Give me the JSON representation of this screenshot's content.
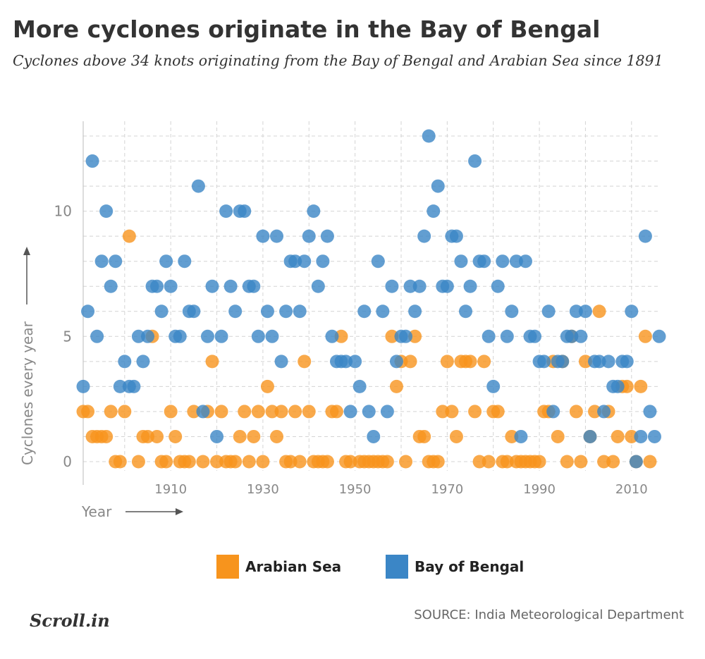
{
  "title": "More cyclones originate in the Bay of Bengal",
  "subtitle": "Cyclones above 34 knots originating from the Bay of Bengal and Arabian Sea since 1891",
  "source": "SOURCE: India Meteorological Department",
  "logo_text": "Scroll.in",
  "colors": {
    "arabian_sea": "#F7941D",
    "bay_of_bengal": "#3B86C6",
    "grid": "#d4d4d4",
    "axis_text": "#888888"
  },
  "chart_data": {
    "type": "scatter",
    "xlabel": "Year",
    "ylabel": "Cyclones every year",
    "xlim": [
      1891,
      2016
    ],
    "ylim": [
      0,
      13
    ],
    "x_ticks": [
      1910,
      1930,
      1950,
      1970,
      1990,
      2010
    ],
    "y_ticks": [
      0,
      5,
      10
    ],
    "grid": true,
    "legend_position": "bottom",
    "series": [
      {
        "name": "Arabian Sea",
        "color": "#F7941D",
        "points": [
          [
            1891,
            2
          ],
          [
            1892,
            2
          ],
          [
            1893,
            1
          ],
          [
            1894,
            1
          ],
          [
            1895,
            1
          ],
          [
            1896,
            1
          ],
          [
            1897,
            2
          ],
          [
            1898,
            0
          ],
          [
            1899,
            0
          ],
          [
            1900,
            2
          ],
          [
            1901,
            9
          ],
          [
            1903,
            0
          ],
          [
            1904,
            1
          ],
          [
            1905,
            1
          ],
          [
            1906,
            5
          ],
          [
            1907,
            1
          ],
          [
            1908,
            0
          ],
          [
            1909,
            0
          ],
          [
            1910,
            2
          ],
          [
            1911,
            1
          ],
          [
            1912,
            0
          ],
          [
            1913,
            0
          ],
          [
            1914,
            0
          ],
          [
            1915,
            2
          ],
          [
            1917,
            0
          ],
          [
            1918,
            2
          ],
          [
            1919,
            4
          ],
          [
            1920,
            0
          ],
          [
            1921,
            2
          ],
          [
            1922,
            0
          ],
          [
            1923,
            0
          ],
          [
            1924,
            0
          ],
          [
            1925,
            1
          ],
          [
            1926,
            2
          ],
          [
            1927,
            0
          ],
          [
            1928,
            1
          ],
          [
            1929,
            2
          ],
          [
            1930,
            0
          ],
          [
            1931,
            3
          ],
          [
            1932,
            2
          ],
          [
            1933,
            1
          ],
          [
            1934,
            2
          ],
          [
            1935,
            0
          ],
          [
            1936,
            0
          ],
          [
            1937,
            2
          ],
          [
            1938,
            0
          ],
          [
            1939,
            4
          ],
          [
            1940,
            2
          ],
          [
            1941,
            0
          ],
          [
            1942,
            0
          ],
          [
            1943,
            0
          ],
          [
            1944,
            0
          ],
          [
            1945,
            2
          ],
          [
            1946,
            2
          ],
          [
            1947,
            5
          ],
          [
            1948,
            0
          ],
          [
            1949,
            0
          ],
          [
            1951,
            0
          ],
          [
            1952,
            0
          ],
          [
            1953,
            0
          ],
          [
            1954,
            0
          ],
          [
            1955,
            0
          ],
          [
            1956,
            0
          ],
          [
            1957,
            0
          ],
          [
            1958,
            5
          ],
          [
            1959,
            3
          ],
          [
            1960,
            4
          ],
          [
            1961,
            0
          ],
          [
            1962,
            4
          ],
          [
            1963,
            5
          ],
          [
            1964,
            1
          ],
          [
            1965,
            1
          ],
          [
            1966,
            0
          ],
          [
            1967,
            0
          ],
          [
            1968,
            0
          ],
          [
            1969,
            2
          ],
          [
            1970,
            4
          ],
          [
            1971,
            2
          ],
          [
            1972,
            1
          ],
          [
            1973,
            4
          ],
          [
            1974,
            4
          ],
          [
            1975,
            4
          ],
          [
            1976,
            2
          ],
          [
            1977,
            0
          ],
          [
            1978,
            4
          ],
          [
            1979,
            0
          ],
          [
            1980,
            2
          ],
          [
            1981,
            2
          ],
          [
            1982,
            0
          ],
          [
            1983,
            0
          ],
          [
            1984,
            1
          ],
          [
            1985,
            0
          ],
          [
            1986,
            0
          ],
          [
            1987,
            0
          ],
          [
            1988,
            0
          ],
          [
            1989,
            0
          ],
          [
            1990,
            0
          ],
          [
            1991,
            2
          ],
          [
            1992,
            2
          ],
          [
            1993,
            4
          ],
          [
            1994,
            1
          ],
          [
            1995,
            4
          ],
          [
            1996,
            0
          ],
          [
            1997,
            5
          ],
          [
            1998,
            2
          ],
          [
            1999,
            0
          ],
          [
            2000,
            4
          ],
          [
            2001,
            1
          ],
          [
            2002,
            2
          ],
          [
            2003,
            6
          ],
          [
            2004,
            0
          ],
          [
            2005,
            2
          ],
          [
            2006,
            0
          ],
          [
            2007,
            1
          ],
          [
            2008,
            3
          ],
          [
            2009,
            3
          ],
          [
            2010,
            1
          ],
          [
            2011,
            0
          ],
          [
            2012,
            3
          ],
          [
            2013,
            5
          ],
          [
            2014,
            0
          ]
        ]
      },
      {
        "name": "Bay of Bengal",
        "color": "#3B86C6",
        "points": [
          [
            1891,
            3
          ],
          [
            1892,
            6
          ],
          [
            1893,
            12
          ],
          [
            1894,
            5
          ],
          [
            1895,
            8
          ],
          [
            1896,
            10
          ],
          [
            1897,
            7
          ],
          [
            1898,
            8
          ],
          [
            1899,
            3
          ],
          [
            1900,
            4
          ],
          [
            1901,
            3
          ],
          [
            1902,
            3
          ],
          [
            1903,
            5
          ],
          [
            1904,
            4
          ],
          [
            1905,
            5
          ],
          [
            1906,
            7
          ],
          [
            1907,
            7
          ],
          [
            1908,
            6
          ],
          [
            1909,
            8
          ],
          [
            1910,
            7
          ],
          [
            1911,
            5
          ],
          [
            1912,
            5
          ],
          [
            1913,
            8
          ],
          [
            1914,
            6
          ],
          [
            1915,
            6
          ],
          [
            1916,
            11
          ],
          [
            1917,
            2
          ],
          [
            1918,
            5
          ],
          [
            1919,
            7
          ],
          [
            1920,
            1
          ],
          [
            1921,
            5
          ],
          [
            1922,
            10
          ],
          [
            1923,
            7
          ],
          [
            1924,
            6
          ],
          [
            1925,
            10
          ],
          [
            1926,
            10
          ],
          [
            1927,
            7
          ],
          [
            1928,
            7
          ],
          [
            1929,
            5
          ],
          [
            1930,
            9
          ],
          [
            1931,
            6
          ],
          [
            1932,
            5
          ],
          [
            1933,
            9
          ],
          [
            1934,
            4
          ],
          [
            1935,
            6
          ],
          [
            1936,
            8
          ],
          [
            1937,
            8
          ],
          [
            1938,
            6
          ],
          [
            1939,
            8
          ],
          [
            1940,
            9
          ],
          [
            1941,
            10
          ],
          [
            1942,
            7
          ],
          [
            1943,
            8
          ],
          [
            1944,
            9
          ],
          [
            1945,
            5
          ],
          [
            1946,
            4
          ],
          [
            1947,
            4
          ],
          [
            1948,
            4
          ],
          [
            1949,
            2
          ],
          [
            1950,
            4
          ],
          [
            1951,
            3
          ],
          [
            1952,
            6
          ],
          [
            1953,
            2
          ],
          [
            1954,
            1
          ],
          [
            1955,
            8
          ],
          [
            1956,
            6
          ],
          [
            1957,
            2
          ],
          [
            1958,
            7
          ],
          [
            1959,
            4
          ],
          [
            1960,
            5
          ],
          [
            1961,
            5
          ],
          [
            1962,
            7
          ],
          [
            1963,
            6
          ],
          [
            1964,
            7
          ],
          [
            1965,
            9
          ],
          [
            1966,
            13
          ],
          [
            1967,
            10
          ],
          [
            1968,
            11
          ],
          [
            1969,
            7
          ],
          [
            1970,
            7
          ],
          [
            1971,
            9
          ],
          [
            1972,
            9
          ],
          [
            1973,
            8
          ],
          [
            1974,
            6
          ],
          [
            1975,
            7
          ],
          [
            1976,
            12
          ],
          [
            1977,
            8
          ],
          [
            1978,
            8
          ],
          [
            1979,
            5
          ],
          [
            1980,
            3
          ],
          [
            1981,
            7
          ],
          [
            1982,
            8
          ],
          [
            1983,
            5
          ],
          [
            1984,
            6
          ],
          [
            1985,
            8
          ],
          [
            1986,
            1
          ],
          [
            1987,
            8
          ],
          [
            1988,
            5
          ],
          [
            1989,
            5
          ],
          [
            1990,
            4
          ],
          [
            1991,
            4
          ],
          [
            1992,
            6
          ],
          [
            1993,
            2
          ],
          [
            1994,
            4
          ],
          [
            1995,
            4
          ],
          [
            1996,
            5
          ],
          [
            1997,
            5
          ],
          [
            1998,
            6
          ],
          [
            1999,
            5
          ],
          [
            2000,
            6
          ],
          [
            2001,
            1
          ],
          [
            2002,
            4
          ],
          [
            2003,
            4
          ],
          [
            2004,
            2
          ],
          [
            2005,
            4
          ],
          [
            2006,
            3
          ],
          [
            2007,
            3
          ],
          [
            2008,
            4
          ],
          [
            2009,
            4
          ],
          [
            2010,
            6
          ],
          [
            2011,
            0
          ],
          [
            2012,
            1
          ],
          [
            2013,
            9
          ],
          [
            2014,
            2
          ],
          [
            2015,
            1
          ],
          [
            2016,
            5
          ]
        ]
      }
    ]
  }
}
